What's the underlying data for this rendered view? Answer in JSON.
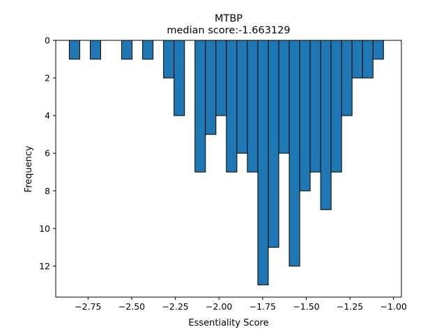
{
  "chart_data": {
    "type": "bar",
    "title": "MTBP",
    "subtitle": "median score:-1.663129",
    "xlabel": "Essentiality Score",
    "ylabel": "Frequency",
    "xlim": [
      -2.935,
      -0.955
    ],
    "ylim": [
      13.65,
      0
    ],
    "y_inverted": true,
    "bar_color": "#1f77b4",
    "edge_color": "#000000",
    "x_ticks": [
      -2.75,
      -2.5,
      -2.25,
      -2.0,
      -1.75,
      -1.5,
      -1.25,
      -1.0
    ],
    "x_tick_labels": [
      "−2.75",
      "−2.50",
      "−2.25",
      "−2.00",
      "−1.75",
      "−1.50",
      "−1.25",
      "−1.00"
    ],
    "y_ticks": [
      0,
      2,
      4,
      6,
      8,
      10,
      12
    ],
    "y_tick_labels": [
      "0",
      "2",
      "4",
      "6",
      "8",
      "10",
      "12"
    ],
    "bins": [
      {
        "x0": -2.8575,
        "x1": -2.7975,
        "value": 1
      },
      {
        "x0": -2.7375,
        "x1": -2.6775,
        "value": 1
      },
      {
        "x0": -2.5575,
        "x1": -2.4975,
        "value": 1
      },
      {
        "x0": -2.4375,
        "x1": -2.3775,
        "value": 1
      },
      {
        "x0": -2.3175,
        "x1": -2.2575,
        "value": 2
      },
      {
        "x0": -2.2575,
        "x1": -2.1975,
        "value": 4
      },
      {
        "x0": -2.1375,
        "x1": -2.0775,
        "value": 7
      },
      {
        "x0": -2.0775,
        "x1": -2.0175,
        "value": 5
      },
      {
        "x0": -2.0175,
        "x1": -1.9575,
        "value": 4
      },
      {
        "x0": -1.9575,
        "x1": -1.8975,
        "value": 7
      },
      {
        "x0": -1.8975,
        "x1": -1.8375,
        "value": 6
      },
      {
        "x0": -1.8375,
        "x1": -1.7775,
        "value": 7
      },
      {
        "x0": -1.7775,
        "x1": -1.7175,
        "value": 13
      },
      {
        "x0": -1.7175,
        "x1": -1.6575,
        "value": 11
      },
      {
        "x0": -1.6575,
        "x1": -1.5975,
        "value": 6
      },
      {
        "x0": -1.5975,
        "x1": -1.5375,
        "value": 12
      },
      {
        "x0": -1.5375,
        "x1": -1.4775,
        "value": 8
      },
      {
        "x0": -1.4775,
        "x1": -1.4175,
        "value": 7
      },
      {
        "x0": -1.4175,
        "x1": -1.3575,
        "value": 9
      },
      {
        "x0": -1.3575,
        "x1": -1.2975,
        "value": 7
      },
      {
        "x0": -1.2975,
        "x1": -1.2375,
        "value": 4
      },
      {
        "x0": -1.2375,
        "x1": -1.1775,
        "value": 2
      },
      {
        "x0": -1.1775,
        "x1": -1.1175,
        "value": 2
      },
      {
        "x0": -1.1175,
        "x1": -1.0575,
        "value": 1
      }
    ]
  }
}
